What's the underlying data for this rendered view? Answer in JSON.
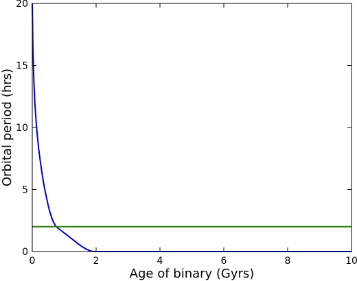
{
  "chart_data": {
    "type": "line",
    "xlabel": "Age of binary (Gyrs)",
    "ylabel": "Orbital period (hrs)",
    "xlim": [
      0,
      10
    ],
    "ylim": [
      0,
      20
    ],
    "x_ticks": [
      0,
      2,
      4,
      6,
      8,
      10
    ],
    "y_ticks": [
      0,
      5,
      10,
      15,
      20
    ],
    "grid": false,
    "series": [
      {
        "color": "#0000cc",
        "x": [
          0.0,
          0.02,
          0.05,
          0.08,
          0.12,
          0.16,
          0.2,
          0.25,
          0.3,
          0.35,
          0.4,
          0.45,
          0.5,
          0.55,
          0.6,
          0.65,
          0.7,
          0.75,
          0.8,
          0.9,
          1.0,
          1.1,
          1.2,
          1.3,
          1.4,
          1.5,
          1.6,
          1.7,
          1.8,
          1.85,
          1.9,
          1.95,
          2.0,
          3.0,
          4.0,
          5.0,
          6.0,
          7.0,
          8.0,
          9.0,
          10.0
        ],
        "y": [
          20.0,
          16.5,
          13.8,
          12.0,
          10.5,
          9.3,
          8.3,
          7.3,
          6.4,
          5.6,
          4.9,
          4.3,
          3.7,
          3.2,
          2.8,
          2.45,
          2.2,
          2.0,
          1.9,
          1.7,
          1.5,
          1.3,
          1.1,
          0.9,
          0.7,
          0.5,
          0.33,
          0.18,
          0.07,
          0.03,
          0.01,
          0.0,
          0.0,
          0.0,
          0.0,
          0.0,
          0.0,
          0.0,
          0.0,
          0.0,
          0.0
        ]
      },
      {
        "color": "#2e7d12",
        "x": [
          0,
          10
        ],
        "y": [
          2,
          2
        ]
      }
    ]
  }
}
